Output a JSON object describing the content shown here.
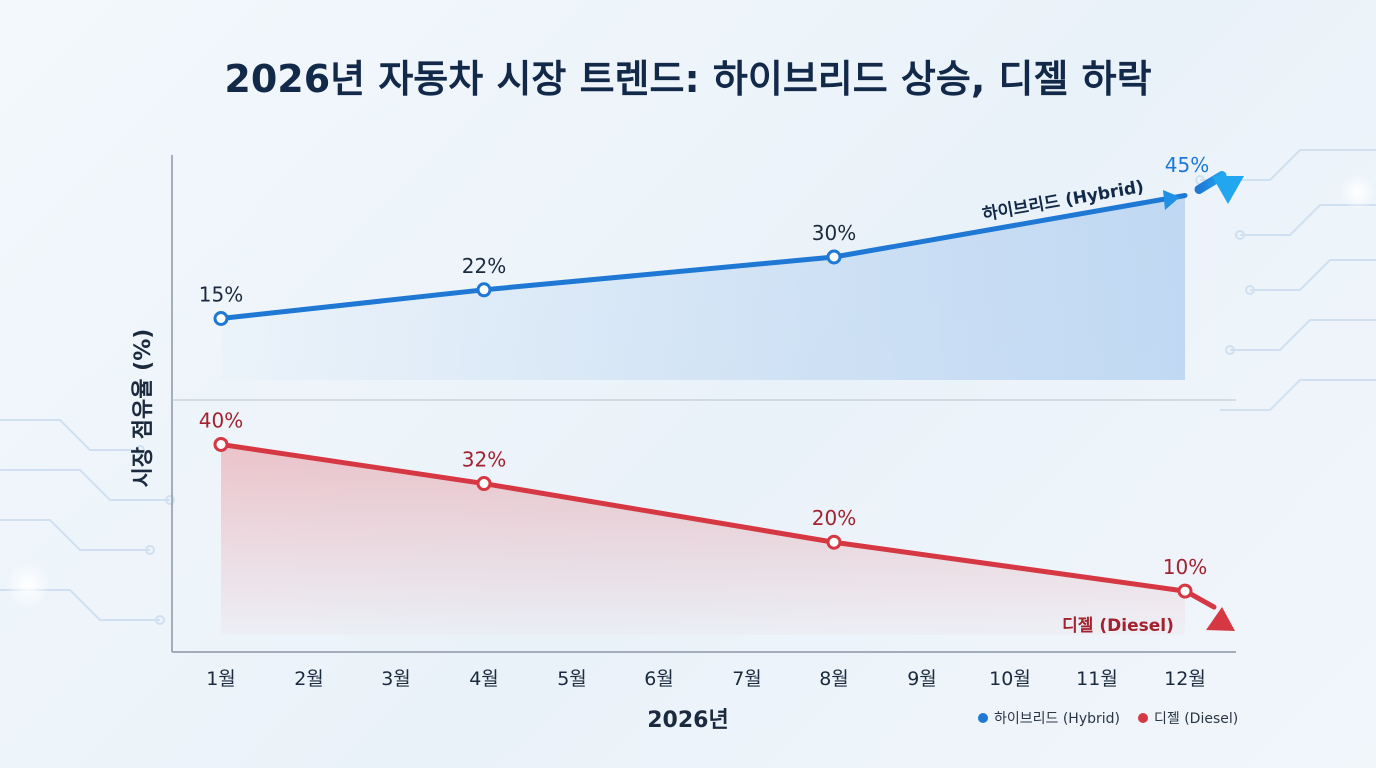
{
  "chart_data": {
    "type": "line",
    "title": "2026년 자동차 시장 트렌드: 하이브리드 상승, 디젤 하락",
    "xlabel": "2026년",
    "ylabel": "시장 점유율 (%)",
    "categories": [
      "1월",
      "2월",
      "3월",
      "4월",
      "5월",
      "6월",
      "7월",
      "8월",
      "9월",
      "10월",
      "11월",
      "12월"
    ],
    "series": [
      {
        "name": "하이브리드 (Hybrid)",
        "color": "#1e78d4",
        "points": [
          {
            "x": "1월",
            "y": 15,
            "label": "15%"
          },
          {
            "x": "4월",
            "y": 22,
            "label": "22%"
          },
          {
            "x": "8월",
            "y": 30,
            "label": "30%"
          },
          {
            "x": "12월",
            "y": 45,
            "label": "45%"
          }
        ]
      },
      {
        "name": "디젤 (Diesel)",
        "color": "#d63843",
        "points": [
          {
            "x": "1월",
            "y": 40,
            "label": "40%"
          },
          {
            "x": "4월",
            "y": 32,
            "label": "32%"
          },
          {
            "x": "8월",
            "y": 20,
            "label": "20%"
          },
          {
            "x": "12월",
            "y": 10,
            "label": "10%"
          }
        ]
      }
    ],
    "legend": {
      "placement": "bottom-right",
      "items": [
        {
          "label": "하이브리드 (Hybrid)",
          "color": "#1e78d4"
        },
        {
          "label": "디젤 (Diesel)",
          "color": "#d63843"
        }
      ]
    },
    "grid": false
  }
}
